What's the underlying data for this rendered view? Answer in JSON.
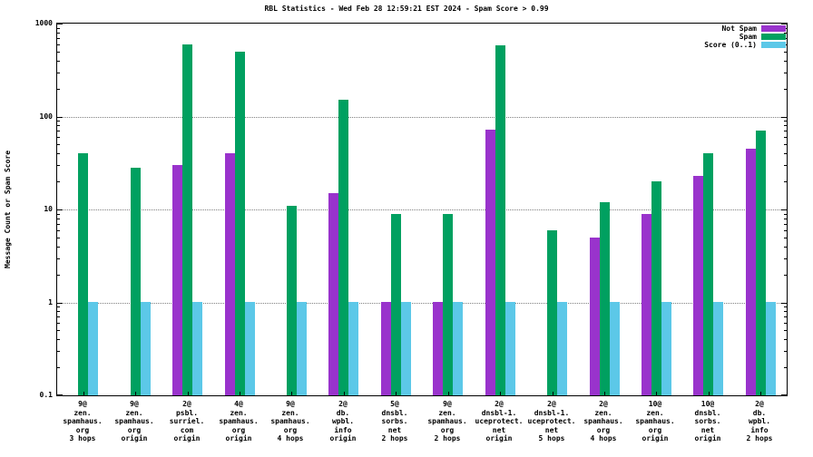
{
  "chart_data": {
    "type": "bar",
    "title": "RBL Statistics - Wed Feb 28 12:59:21 EST 2024 - Spam Score > 0.99",
    "ylabel": "Message Count or Spam Score",
    "yscale": "log",
    "ylim": [
      0.1,
      1000
    ],
    "yticks": [
      "0.1",
      "1",
      "10",
      "100",
      "1000"
    ],
    "grid": true,
    "legend_position": "top-right",
    "categories": [
      [
        "9@",
        "zen.",
        "spamhaus.",
        "org",
        "3 hops"
      ],
      [
        "9@",
        "zen.",
        "spamhaus.",
        "org",
        "origin"
      ],
      [
        "2@",
        "psbl.",
        "surriel.",
        "com",
        "origin"
      ],
      [
        "4@",
        "zen.",
        "spamhaus.",
        "org",
        "origin"
      ],
      [
        "9@",
        "zen.",
        "spamhaus.",
        "org",
        "4 hops"
      ],
      [
        "2@",
        "db.",
        "wpbl.",
        "info",
        "origin"
      ],
      [
        "5@",
        "dnsbl.",
        "sorbs.",
        "net",
        "2 hops"
      ],
      [
        "9@",
        "zen.",
        "spamhaus.",
        "org",
        "2 hops"
      ],
      [
        "2@",
        "dnsbl-1.",
        "uceprotect.",
        "net",
        "origin"
      ],
      [
        "2@",
        "dnsbl-1.",
        "uceprotect.",
        "net",
        "5 hops"
      ],
      [
        "2@",
        "zen.",
        "spamhaus.",
        "org",
        "4 hops"
      ],
      [
        "10@",
        "zen.",
        "spamhaus.",
        "org",
        "origin"
      ],
      [
        "10@",
        "dnsbl.",
        "sorbs.",
        "net",
        "origin"
      ],
      [
        "2@",
        "db.",
        "wpbl.",
        "info",
        "2 hops"
      ]
    ],
    "series": [
      {
        "name": "Not Spam",
        "color": "#9933cc",
        "values": [
          null,
          null,
          30,
          40,
          null,
          15,
          1,
          1,
          72,
          null,
          5,
          9,
          23,
          45
        ]
      },
      {
        "name": "Spam",
        "color": "#00a060",
        "values": [
          40,
          28,
          600,
          500,
          11,
          150,
          9,
          9,
          580,
          6,
          12,
          20,
          40,
          70
        ]
      },
      {
        "name": "Score (0..1)",
        "color": "#5cc8e8",
        "values": [
          1,
          1,
          1,
          1,
          1,
          1,
          1,
          1,
          1,
          1,
          1,
          1,
          1,
          1
        ]
      }
    ]
  },
  "colors": {
    "background": "#ffffff",
    "border": "#000000",
    "grid": "#808080",
    "not_spam": "#9933cc",
    "spam": "#00a060",
    "score": "#5cc8e8"
  }
}
